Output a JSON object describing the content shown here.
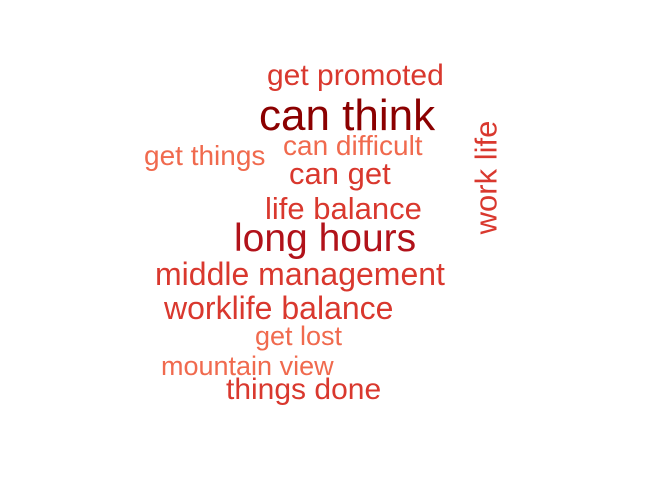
{
  "words": {
    "can_think": {
      "text": "can think",
      "color": "#8b0000"
    },
    "get_promoted": {
      "text": "get promoted",
      "color": "#d9382e"
    },
    "get_things": {
      "text": "get things",
      "color": "#f06a4e"
    },
    "can_difficult": {
      "text": "can difficult",
      "color": "#f06a4e"
    },
    "can_get": {
      "text": "can get",
      "color": "#d9382e"
    },
    "life_balance": {
      "text": "life balance",
      "color": "#d9382e"
    },
    "long_hours": {
      "text": "long hours",
      "color": "#b1121a"
    },
    "middle_management": {
      "text": "middle management",
      "color": "#d9382e"
    },
    "worklife_balance": {
      "text": "worklife balance",
      "color": "#d9382e"
    },
    "get_lost": {
      "text": "get lost",
      "color": "#f06a4e"
    },
    "mountain_view": {
      "text": "mountain view",
      "color": "#f06a4e"
    },
    "things_done": {
      "text": "things done",
      "color": "#d9382e"
    },
    "work_life": {
      "text": "work life",
      "color": "#d9382e",
      "orientation": "vertical"
    }
  }
}
